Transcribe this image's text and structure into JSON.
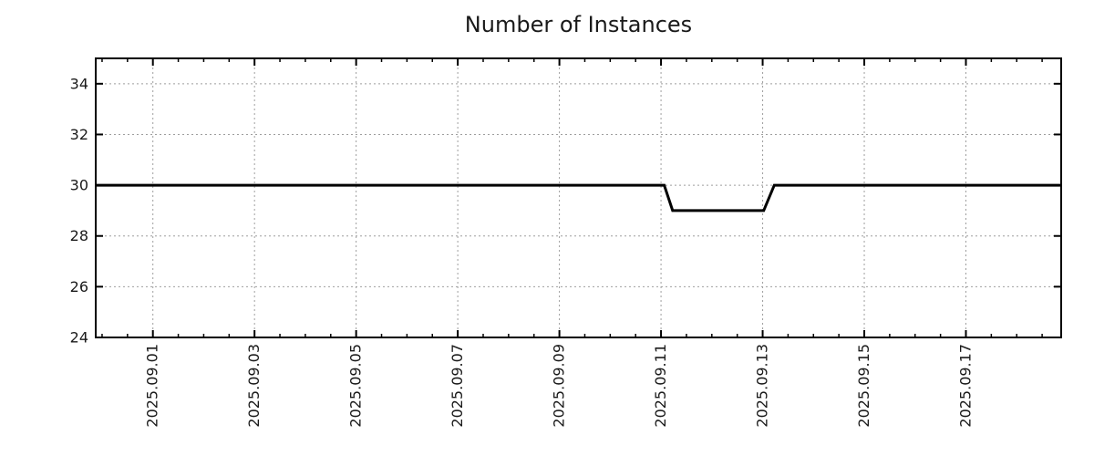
{
  "page": {
    "background_color": "#ffffff"
  },
  "chart_data": {
    "type": "line",
    "title": "Number of Instances",
    "legend": {
      "show": false
    },
    "grid": {
      "show": true,
      "style": "dotted",
      "color": "#9e9e9e"
    },
    "axis_color": "#000000",
    "text_color": "#1a1a1a",
    "x_axis": {
      "start": "2025-08-30 21:00",
      "end": "2025-09-18 21:00",
      "tick_labels": [
        "2025.09.01",
        "2025.09.03",
        "2025.09.05",
        "2025.09.07",
        "2025.09.09",
        "2025.09.11",
        "2025.09.13",
        "2025.09.15",
        "2025.09.17"
      ],
      "minor_tick_interval_days": 0.5,
      "label_rotation_deg": -90
    },
    "y_axis": {
      "min": 24,
      "max": 35,
      "ticks": [
        24,
        26,
        28,
        30,
        32,
        34
      ]
    },
    "series": [
      {
        "name": "instances",
        "color": "#000000",
        "line_width": 3,
        "points": [
          {
            "t": "2025-08-30 21:00",
            "y": 30
          },
          {
            "t": "2025-09-11 01:30",
            "y": 30
          },
          {
            "t": "2025-09-11 05:30",
            "y": 29
          },
          {
            "t": "2025-09-13 00:30",
            "y": 29
          },
          {
            "t": "2025-09-13 05:30",
            "y": 30
          },
          {
            "t": "2025-09-18 21:00",
            "y": 30
          }
        ]
      }
    ]
  }
}
